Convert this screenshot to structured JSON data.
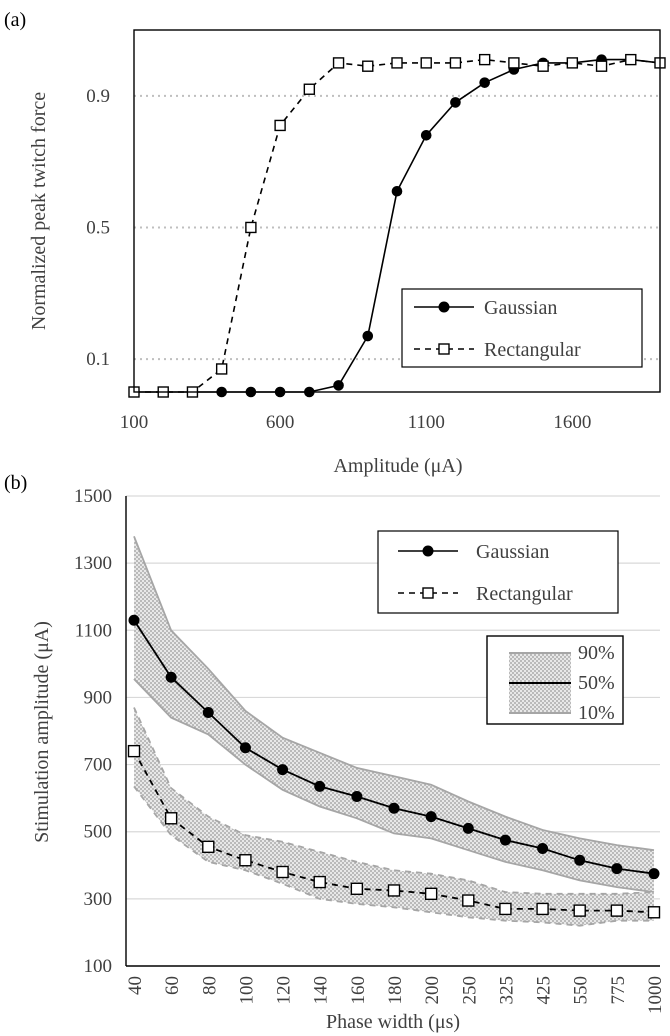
{
  "chart_data": [
    {
      "panel_label": "(a)",
      "type": "line",
      "title": "",
      "xlabel": "Amplitude (μA)",
      "ylabel": "Normalized peak twitch force",
      "xlim": [
        100,
        1900
      ],
      "ylim": [
        0,
        1.1
      ],
      "x_ticks": [
        "100",
        "600",
        "1100",
        "1600"
      ],
      "y_ticks": [
        "0.1",
        "0.5",
        "0.9"
      ],
      "grid": "horizontal dotted at 0.1, 0.5, 0.9",
      "legend_position": "bottom-right",
      "colors": {
        "gaussian": "#000000",
        "rectangular": "#000000",
        "grid": "#bfbfbf"
      },
      "series": [
        {
          "name": "Gaussian",
          "marker": "filled circle",
          "line": "solid",
          "x": [
            100,
            200,
            300,
            400,
            500,
            600,
            700,
            800,
            900,
            1000,
            1100,
            1200,
            1300,
            1400,
            1500,
            1600,
            1700,
            1800,
            1900
          ],
          "y": [
            0,
            0,
            0,
            0,
            0,
            0,
            0,
            0.02,
            0.17,
            0.61,
            0.78,
            0.88,
            0.94,
            0.98,
            1.0,
            1.0,
            1.01,
            1.01,
            1.0
          ]
        },
        {
          "name": "Rectangular",
          "marker": "open square",
          "line": "dashed",
          "x": [
            100,
            200,
            300,
            400,
            500,
            600,
            700,
            800,
            900,
            1000,
            1100,
            1200,
            1300,
            1400,
            1500,
            1600,
            1700,
            1800,
            1900
          ],
          "y": [
            0,
            0,
            0,
            0.07,
            0.5,
            0.81,
            0.92,
            1.0,
            0.99,
            1.0,
            1.0,
            1.0,
            1.01,
            1.0,
            0.99,
            1.0,
            0.99,
            1.01,
            1.0
          ]
        }
      ]
    },
    {
      "panel_label": "(b)",
      "type": "line",
      "title": "",
      "xlabel": "Phase width (μs)",
      "ylabel": "Stimulation amplitude (μA)",
      "categories": [
        "40",
        "60",
        "80",
        "100",
        "120",
        "140",
        "160",
        "180",
        "200",
        "250",
        "325",
        "425",
        "550",
        "775",
        "1000"
      ],
      "ylim": [
        100,
        1500
      ],
      "y_ticks": [
        "100",
        "300",
        "500",
        "700",
        "900",
        "1100",
        "1300",
        "1500"
      ],
      "grid": "horizontal solid every 200",
      "legend_position": "top-right",
      "legend_band_labels": [
        "90%",
        "50%",
        "10%"
      ],
      "colors": {
        "line": "#000000",
        "band_edge": "#a6a6a6",
        "band_fill": "#dcdcdc",
        "grid": "#d9d9d9"
      },
      "series": [
        {
          "name": "Gaussian",
          "marker": "filled circle",
          "line": "solid",
          "values": [
            1130,
            960,
            855,
            750,
            685,
            635,
            605,
            570,
            545,
            510,
            475,
            450,
            415,
            390,
            375
          ],
          "p90": [
            1380,
            1100,
            985,
            860,
            780,
            735,
            690,
            665,
            640,
            590,
            545,
            505,
            480,
            460,
            445
          ],
          "p10": [
            955,
            840,
            790,
            700,
            625,
            575,
            540,
            495,
            480,
            445,
            410,
            385,
            355,
            335,
            320
          ]
        },
        {
          "name": "Rectangular",
          "marker": "open square",
          "line": "dashed",
          "values": [
            740,
            540,
            455,
            415,
            380,
            350,
            330,
            325,
            315,
            295,
            270,
            270,
            265,
            265,
            260
          ],
          "p90": [
            870,
            630,
            545,
            490,
            470,
            440,
            410,
            385,
            375,
            355,
            320,
            315,
            315,
            315,
            320
          ],
          "p10": [
            635,
            490,
            410,
            385,
            345,
            300,
            285,
            275,
            260,
            245,
            235,
            230,
            220,
            235,
            235
          ]
        }
      ]
    }
  ]
}
